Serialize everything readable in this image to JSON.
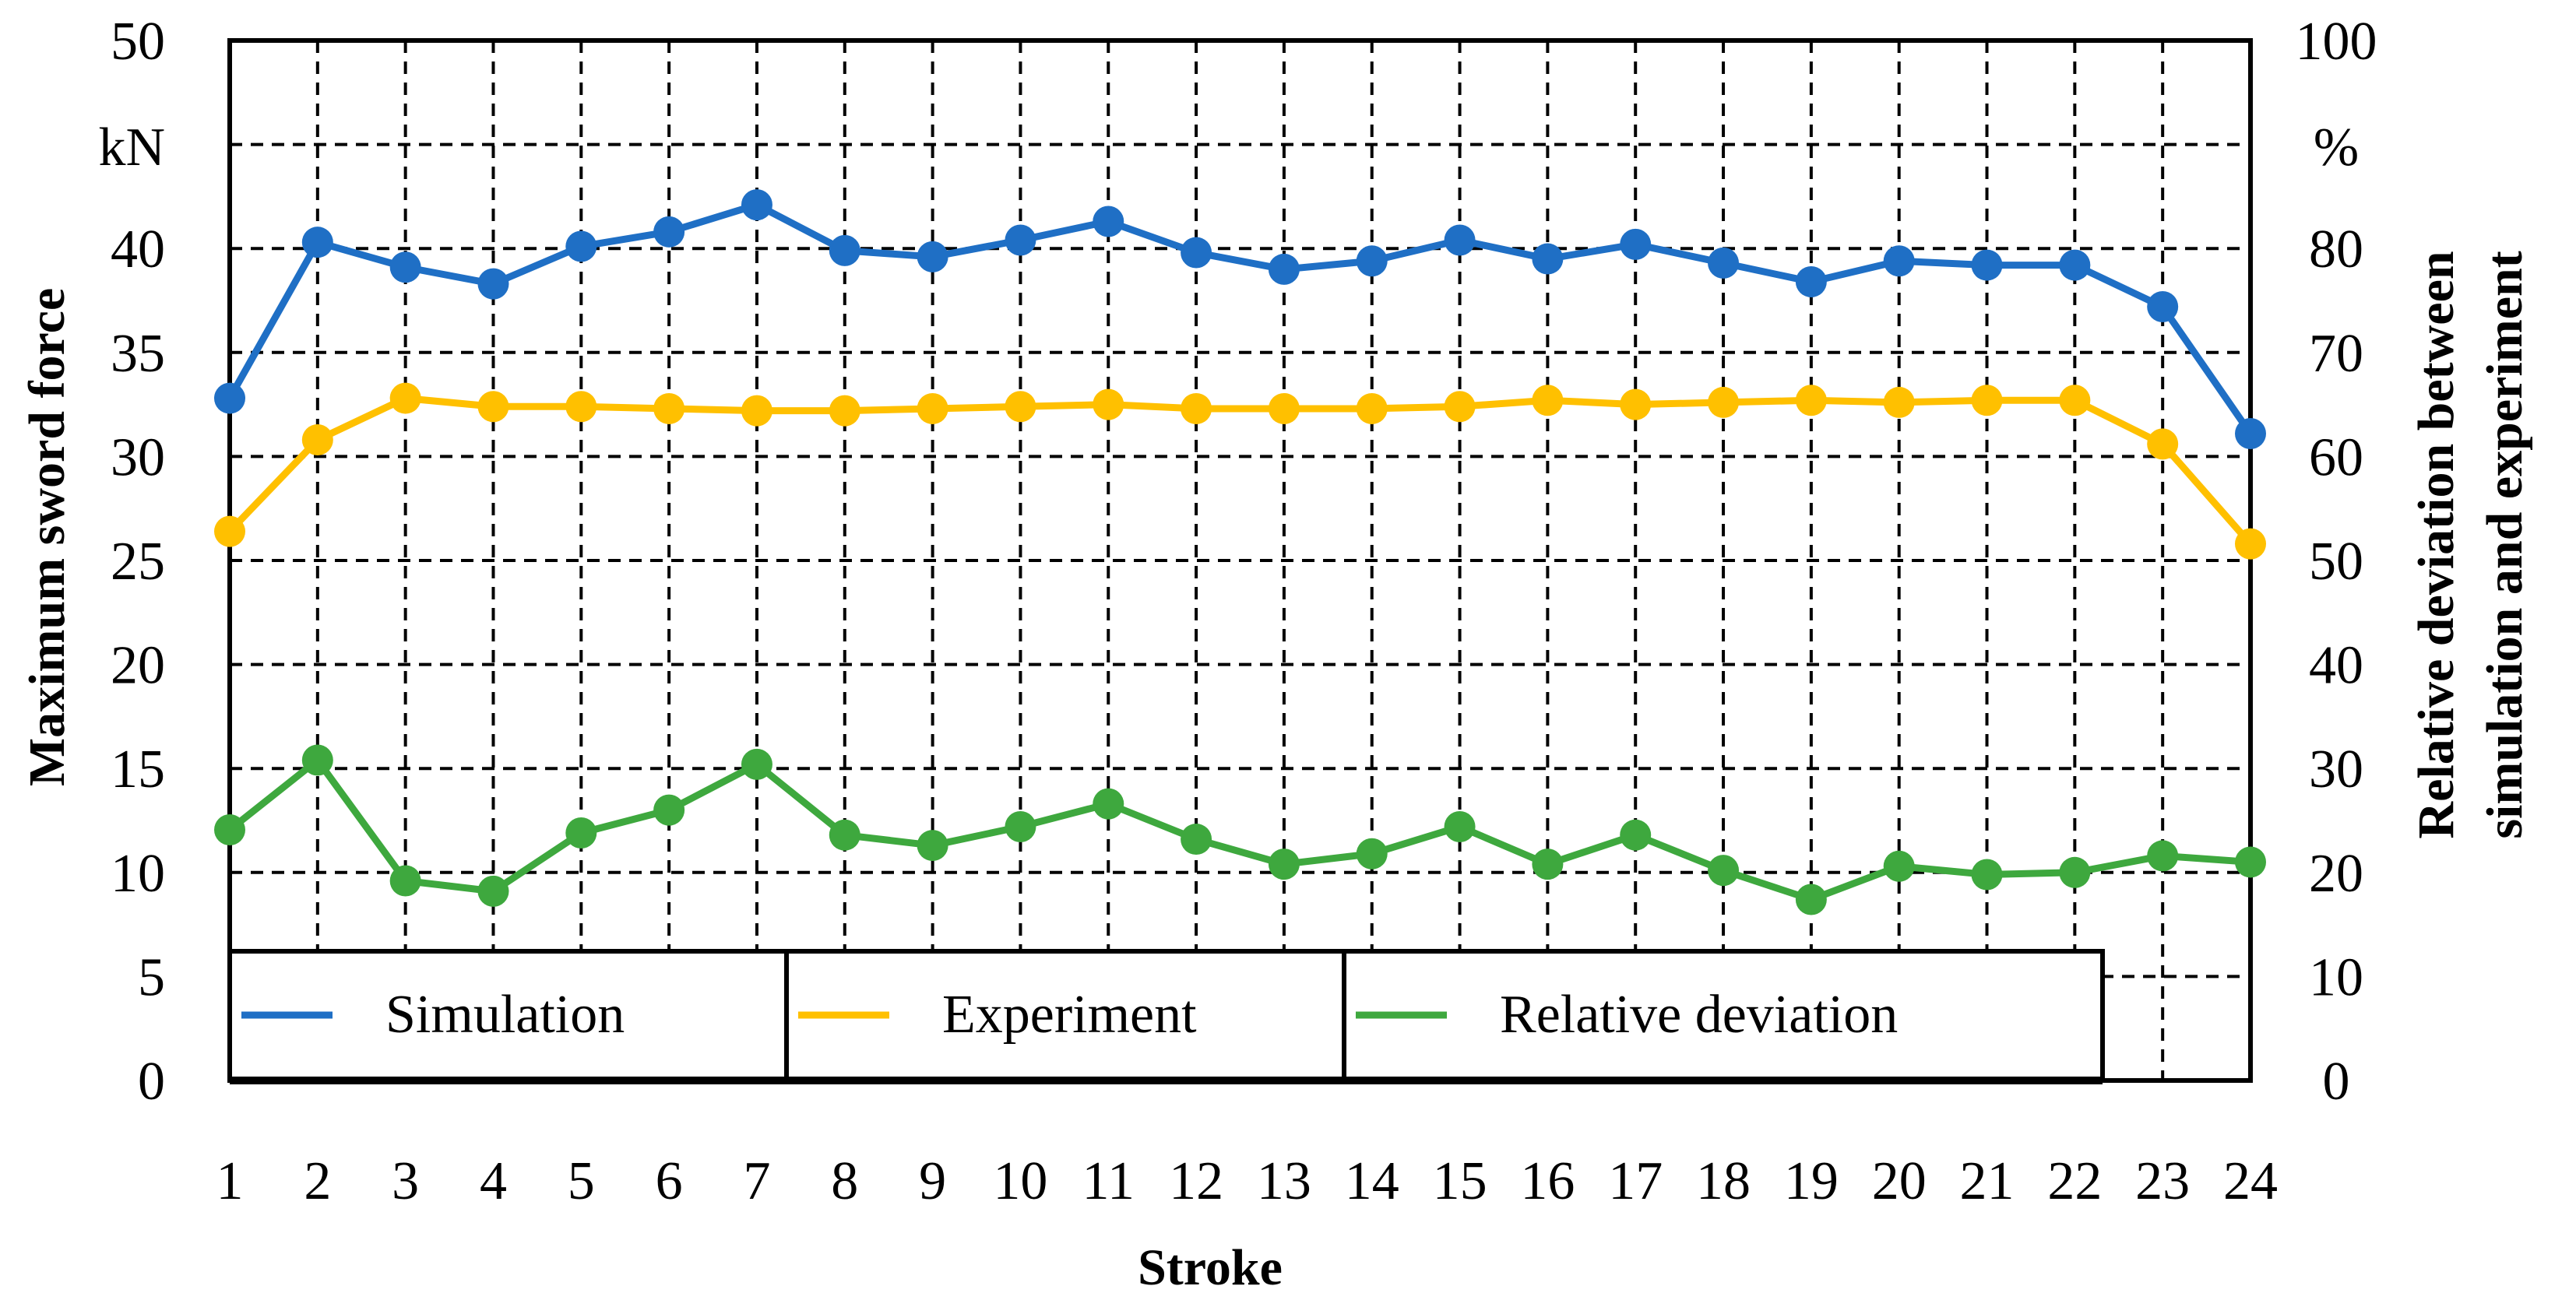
{
  "chart_data": {
    "type": "line",
    "categories": [
      "1",
      "2",
      "3",
      "4",
      "5",
      "6",
      "7",
      "8",
      "9",
      "10",
      "11",
      "12",
      "13",
      "14",
      "15",
      "16",
      "17",
      "18",
      "19",
      "20",
      "21",
      "22",
      "23",
      "24"
    ],
    "xlabel": "Stroke",
    "ylabel": "Maximum sword force",
    "y_unit": "kN",
    "ylim": [
      0,
      50
    ],
    "y_ticks": [
      0,
      5,
      10,
      15,
      20,
      25,
      30,
      35,
      40,
      45,
      50
    ],
    "y_tick_labels": [
      "0",
      "5",
      "10",
      "15",
      "20",
      "25",
      "30",
      "35",
      "40",
      "",
      "50"
    ],
    "y2label_line1": "Relative deviation between",
    "y2label_line2": "simulation and experiment",
    "y2_unit": "%",
    "y2lim": [
      0,
      100
    ],
    "y2_ticks": [
      0,
      10,
      20,
      30,
      40,
      50,
      60,
      70,
      80,
      90,
      100
    ],
    "y2_tick_labels": [
      "0",
      "10",
      "20",
      "30",
      "40",
      "50",
      "60",
      "70",
      "80",
      "",
      "100"
    ],
    "grid": true,
    "legend_position": "bottom",
    "series": [
      {
        "name": "Simulation",
        "axis": "left",
        "color": "#1f6fc5",
        "values": [
          32.8,
          40.3,
          39.1,
          38.3,
          40.1,
          40.8,
          42.1,
          39.9,
          39.6,
          40.4,
          41.3,
          39.8,
          39.0,
          39.4,
          40.4,
          39.5,
          40.2,
          39.3,
          38.4,
          39.4,
          39.2,
          39.2,
          37.2,
          31.1
        ]
      },
      {
        "name": "Experiment",
        "axis": "left",
        "color": "#ffc000",
        "values": [
          26.4,
          30.8,
          32.8,
          32.4,
          32.4,
          32.3,
          32.2,
          32.2,
          32.3,
          32.4,
          32.5,
          32.3,
          32.3,
          32.3,
          32.4,
          32.7,
          32.5,
          32.6,
          32.7,
          32.6,
          32.7,
          32.7,
          30.6,
          25.8
        ]
      },
      {
        "name": "Relative deviation",
        "axis": "right",
        "color": "#3ea83e",
        "values": [
          24.1,
          30.8,
          19.2,
          18.2,
          23.8,
          26.0,
          30.4,
          23.6,
          22.6,
          24.4,
          26.6,
          23.2,
          20.8,
          21.8,
          24.4,
          20.8,
          23.6,
          20.2,
          17.4,
          20.6,
          19.8,
          20.0,
          21.6,
          21.0
        ]
      }
    ]
  }
}
